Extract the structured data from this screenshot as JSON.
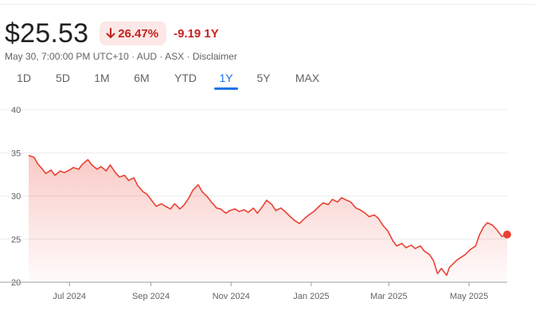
{
  "quote": {
    "price": "$25.53",
    "change_pct": "26.47%",
    "change_abs": "-9.19 1Y",
    "timestamp": "May 30, 7:00:00 PM UTC+10",
    "currency": "AUD",
    "exchange": "ASX",
    "disclaimer": "Disclaimer",
    "separator": "·",
    "down_color": "#c5221f",
    "badge_bg": "#fce8e6"
  },
  "ranges": [
    {
      "label": "1D",
      "active": false
    },
    {
      "label": "5D",
      "active": false
    },
    {
      "label": "1M",
      "active": false
    },
    {
      "label": "6M",
      "active": false
    },
    {
      "label": "YTD",
      "active": false
    },
    {
      "label": "1Y",
      "active": true
    },
    {
      "label": "5Y",
      "active": false
    },
    {
      "label": "MAX",
      "active": false
    }
  ],
  "chart_data": {
    "type": "area",
    "title": "",
    "xlabel": "",
    "ylabel": "",
    "ylim": [
      20,
      40
    ],
    "yticks": [
      20,
      25,
      30,
      35,
      40
    ],
    "xlim": [
      "2024-05-31",
      "2025-05-30"
    ],
    "xticks": [
      {
        "date": "2024-07-01",
        "label": "Jul 2024"
      },
      {
        "date": "2024-09-01",
        "label": "Sep 2024"
      },
      {
        "date": "2024-11-01",
        "label": "Nov 2024"
      },
      {
        "date": "2025-01-01",
        "label": "Jan 2025"
      },
      {
        "date": "2025-03-01",
        "label": "Mar 2025"
      },
      {
        "date": "2025-05-01",
        "label": "May 2025"
      }
    ],
    "grid": true,
    "line_color": "#e94235",
    "series": [
      {
        "points": [
          [
            "2024-05-31",
            34.7
          ],
          [
            "2024-06-04",
            34.5
          ],
          [
            "2024-06-07",
            33.7
          ],
          [
            "2024-06-10",
            33.2
          ],
          [
            "2024-06-13",
            32.6
          ],
          [
            "2024-06-17",
            33.0
          ],
          [
            "2024-06-20",
            32.4
          ],
          [
            "2024-06-24",
            32.9
          ],
          [
            "2024-06-27",
            32.7
          ],
          [
            "2024-07-01",
            33.0
          ],
          [
            "2024-07-04",
            33.3
          ],
          [
            "2024-07-08",
            33.1
          ],
          [
            "2024-07-11",
            33.7
          ],
          [
            "2024-07-15",
            34.2
          ],
          [
            "2024-07-18",
            33.6
          ],
          [
            "2024-07-22",
            33.1
          ],
          [
            "2024-07-25",
            33.4
          ],
          [
            "2024-07-29",
            32.9
          ],
          [
            "2024-08-01",
            33.6
          ],
          [
            "2024-08-05",
            32.7
          ],
          [
            "2024-08-08",
            32.2
          ],
          [
            "2024-08-12",
            32.4
          ],
          [
            "2024-08-15",
            31.8
          ],
          [
            "2024-08-19",
            32.1
          ],
          [
            "2024-08-22",
            31.2
          ],
          [
            "2024-08-26",
            30.5
          ],
          [
            "2024-08-29",
            30.2
          ],
          [
            "2024-09-02",
            29.4
          ],
          [
            "2024-09-05",
            28.8
          ],
          [
            "2024-09-09",
            29.1
          ],
          [
            "2024-09-12",
            28.8
          ],
          [
            "2024-09-16",
            28.5
          ],
          [
            "2024-09-19",
            29.1
          ],
          [
            "2024-09-23",
            28.5
          ],
          [
            "2024-09-26",
            28.9
          ],
          [
            "2024-09-30",
            29.8
          ],
          [
            "2024-10-03",
            30.7
          ],
          [
            "2024-10-07",
            31.3
          ],
          [
            "2024-10-10",
            30.5
          ],
          [
            "2024-10-14",
            29.9
          ],
          [
            "2024-10-17",
            29.3
          ],
          [
            "2024-10-21",
            28.6
          ],
          [
            "2024-10-24",
            28.5
          ],
          [
            "2024-10-28",
            28.0
          ],
          [
            "2024-10-31",
            28.3
          ],
          [
            "2024-11-04",
            28.5
          ],
          [
            "2024-11-07",
            28.2
          ],
          [
            "2024-11-11",
            28.4
          ],
          [
            "2024-11-14",
            28.1
          ],
          [
            "2024-11-18",
            28.6
          ],
          [
            "2024-11-21",
            28.0
          ],
          [
            "2024-11-25",
            28.8
          ],
          [
            "2024-11-28",
            29.5
          ],
          [
            "2024-12-02",
            29.0
          ],
          [
            "2024-12-05",
            28.3
          ],
          [
            "2024-12-09",
            28.6
          ],
          [
            "2024-12-12",
            28.2
          ],
          [
            "2024-12-16",
            27.6
          ],
          [
            "2024-12-19",
            27.2
          ],
          [
            "2024-12-23",
            26.8
          ],
          [
            "2024-12-27",
            27.4
          ],
          [
            "2024-12-31",
            27.9
          ],
          [
            "2025-01-03",
            28.2
          ],
          [
            "2025-01-07",
            28.8
          ],
          [
            "2025-01-10",
            29.2
          ],
          [
            "2025-01-14",
            29.0
          ],
          [
            "2025-01-17",
            29.6
          ],
          [
            "2025-01-21",
            29.3
          ],
          [
            "2025-01-24",
            29.8
          ],
          [
            "2025-01-28",
            29.5
          ],
          [
            "2025-01-31",
            29.3
          ],
          [
            "2025-02-04",
            28.6
          ],
          [
            "2025-02-07",
            28.4
          ],
          [
            "2025-02-11",
            28.0
          ],
          [
            "2025-02-14",
            27.6
          ],
          [
            "2025-02-18",
            27.8
          ],
          [
            "2025-02-21",
            27.4
          ],
          [
            "2025-02-25",
            26.5
          ],
          [
            "2025-02-28",
            26.0
          ],
          [
            "2025-03-04",
            24.8
          ],
          [
            "2025-03-07",
            24.2
          ],
          [
            "2025-03-11",
            24.5
          ],
          [
            "2025-03-14",
            24.0
          ],
          [
            "2025-03-18",
            24.3
          ],
          [
            "2025-03-21",
            23.9
          ],
          [
            "2025-03-25",
            24.2
          ],
          [
            "2025-03-28",
            23.6
          ],
          [
            "2025-04-01",
            23.2
          ],
          [
            "2025-04-04",
            22.5
          ],
          [
            "2025-04-07",
            21.0
          ],
          [
            "2025-04-10",
            21.6
          ],
          [
            "2025-04-14",
            20.8
          ],
          [
            "2025-04-16",
            21.7
          ],
          [
            "2025-04-22",
            22.6
          ],
          [
            "2025-04-28",
            23.2
          ],
          [
            "2025-05-02",
            23.8
          ],
          [
            "2025-05-06",
            24.2
          ],
          [
            "2025-05-09",
            25.5
          ],
          [
            "2025-05-12",
            26.4
          ],
          [
            "2025-05-15",
            26.9
          ],
          [
            "2025-05-19",
            26.6
          ],
          [
            "2025-05-22",
            26.1
          ],
          [
            "2025-05-26",
            25.3
          ],
          [
            "2025-05-30",
            25.53
          ]
        ]
      }
    ]
  }
}
